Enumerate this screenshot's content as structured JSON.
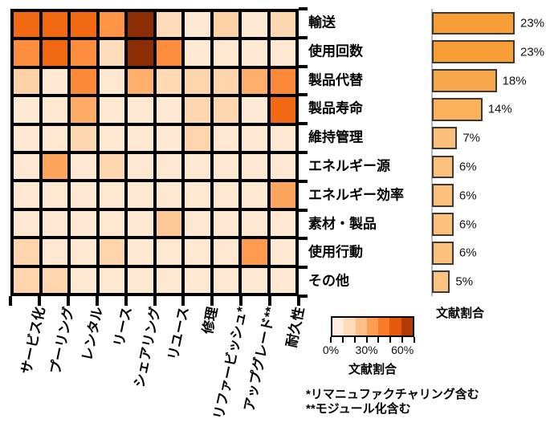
{
  "chart_data": [
    {
      "type": "heatmap",
      "title": "",
      "x_categories": [
        "サービス化",
        "プーリング",
        "レンタル",
        "リース",
        "シェアリング",
        "リユース",
        "修理",
        "リファービッシュ*",
        "アップグレード**",
        "耐久性"
      ],
      "y_categories": [
        "輸送",
        "使用回数",
        "製品代替",
        "製品寿命",
        "維持管理",
        "エネルギー源",
        "エネルギー効率",
        "素材・製品",
        "使用行動",
        "その他"
      ],
      "values_percent": [
        [
          50,
          50,
          50,
          38,
          70,
          15,
          8,
          19,
          8,
          17
        ],
        [
          40,
          50,
          40,
          14,
          70,
          40,
          8,
          9,
          8,
          9
        ],
        [
          19,
          8,
          41,
          9,
          30,
          16,
          18,
          18,
          30,
          41
        ],
        [
          8,
          9,
          31,
          9,
          9,
          8,
          17,
          17,
          8,
          50
        ],
        [
          9,
          9,
          17,
          9,
          9,
          8,
          18,
          9,
          9,
          9
        ],
        [
          9,
          33,
          9,
          17,
          9,
          9,
          9,
          9,
          9,
          9
        ],
        [
          9,
          9,
          9,
          9,
          9,
          9,
          9,
          9,
          9,
          33
        ],
        [
          9,
          9,
          9,
          9,
          9,
          22,
          9,
          9,
          9,
          9
        ],
        [
          18,
          9,
          9,
          18,
          9,
          9,
          9,
          9,
          36,
          9
        ],
        [
          18,
          18,
          9,
          9,
          9,
          9,
          9,
          9,
          9,
          9
        ]
      ],
      "colorbar": {
        "label": "文献割合",
        "range_percent": [
          0,
          70
        ],
        "segments": 7,
        "tick_values": [
          0,
          10,
          20,
          30,
          40,
          50,
          60,
          70
        ],
        "tick_labels": [
          "0%",
          "30%",
          "60%"
        ],
        "tick_label_values": [
          0,
          30,
          60
        ]
      }
    },
    {
      "type": "bar",
      "orientation": "horizontal",
      "categories": [
        "輸送",
        "使用回数",
        "製品代替",
        "製品寿命",
        "維持管理",
        "エネルギー源",
        "エネルギー効率",
        "素材・製品",
        "使用行動",
        "その他"
      ],
      "values_percent": [
        23,
        23,
        18,
        14,
        7,
        6,
        6,
        6,
        6,
        5
      ],
      "value_labels": [
        "23%",
        "23%",
        "18%",
        "14%",
        "7%",
        "6%",
        "6%",
        "6%",
        "6%",
        "5%"
      ],
      "axis_label": "文献割合"
    }
  ],
  "footnotes": [
    "*リマニュファクチャリング含む",
    "**モジュール化含む"
  ],
  "colors": {
    "background": "#ffffff",
    "grid_line": "#000000",
    "text": "#000000",
    "colormap_anchors": [
      "#fff5eb",
      "#fee6ce",
      "#fdd0a2",
      "#fdae6b",
      "#fd8d3c",
      "#f16913",
      "#d94801",
      "#8c2d04"
    ],
    "bar_fill_min": "#fcc381",
    "bar_fill_max": "#f79e37",
    "bar_outline": "#3a3a3a",
    "bar_axis_line": "#b9b9b9"
  }
}
